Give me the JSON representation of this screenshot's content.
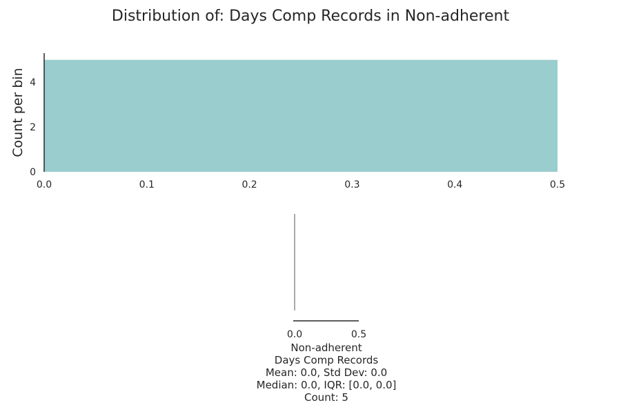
{
  "title": "Distribution of: Days Comp Records in Non-adherent",
  "colors": {
    "bar": "#9ACDCD",
    "axis": "#262626",
    "box": "#555555"
  },
  "chart_data": [
    {
      "type": "bar",
      "subtype": "histogram",
      "bins": [
        {
          "start": 0.0,
          "end": 0.5,
          "count": 5
        }
      ],
      "xlim": [
        0.0,
        0.5
      ],
      "ylim": [
        0,
        5.3
      ],
      "xticks": [
        "0.0",
        "0.1",
        "0.2",
        "0.3",
        "0.4",
        "0.5"
      ],
      "yticks": [
        "0",
        "2",
        "4"
      ],
      "xlabel": "",
      "ylabel": "Count per bin",
      "grid": false
    },
    {
      "type": "box",
      "xlim": [
        0.0,
        0.5
      ],
      "xticks": [
        "0.0",
        "0.5"
      ],
      "values": {
        "min": 0.0,
        "q1": 0.0,
        "median": 0.0,
        "q3": 0.0,
        "max": 0.0
      }
    }
  ],
  "stats_lines": [
    "Non-adherent",
    "Days Comp Records",
    "Mean: 0.0, Std Dev: 0.0",
    "Median: 0.0, IQR: [0.0, 0.0]",
    "Count: 5"
  ]
}
